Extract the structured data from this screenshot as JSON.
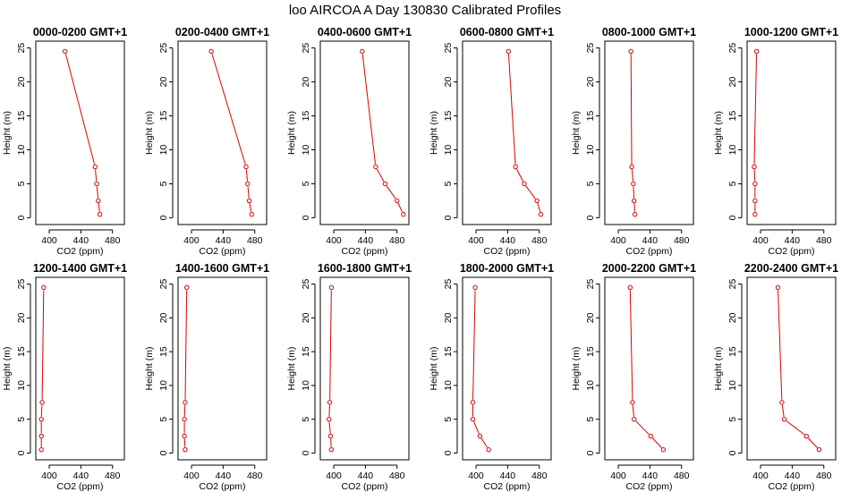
{
  "figure": {
    "title": "loo AIRCOA A  Day 130830  Calibrated Profiles"
  },
  "colors": {
    "series": "#dd0000",
    "axis": "#000000",
    "background": "#ffffff"
  },
  "chart_data": [
    {
      "type": "line",
      "title": "0000-0200 GMT+1",
      "xlabel": "CO2 (ppm)",
      "ylabel": "Height (m)",
      "xlim": [
        383,
        495
      ],
      "ylim": [
        0,
        25
      ],
      "xticks": [
        400,
        440,
        480
      ],
      "yticks": [
        0,
        5,
        10,
        15,
        20,
        25
      ],
      "x": [
        464,
        462,
        460,
        458,
        420
      ],
      "y": [
        0.5,
        2.5,
        5,
        7.5,
        24.5
      ]
    },
    {
      "type": "line",
      "title": "0200-0400 GMT+1",
      "xlabel": "CO2 (ppm)",
      "ylabel": "Height (m)",
      "xlim": [
        383,
        495
      ],
      "ylim": [
        0,
        25
      ],
      "xticks": [
        400,
        440,
        480
      ],
      "yticks": [
        0,
        5,
        10,
        15,
        20,
        25
      ],
      "x": [
        476,
        473,
        471,
        469,
        425
      ],
      "y": [
        0.5,
        2.5,
        5,
        7.5,
        24.5
      ]
    },
    {
      "type": "line",
      "title": "0400-0600 GMT+1",
      "xlabel": "CO2 (ppm)",
      "ylabel": "Height (m)",
      "xlim": [
        383,
        495
      ],
      "ylim": [
        0,
        25
      ],
      "xticks": [
        400,
        440,
        480
      ],
      "yticks": [
        0,
        5,
        10,
        15,
        20,
        25
      ],
      "x": [
        488,
        480,
        465,
        453,
        436
      ],
      "y": [
        0.5,
        2.5,
        5,
        7.5,
        24.5
      ]
    },
    {
      "type": "line",
      "title": "0600-0800 GMT+1",
      "xlabel": "CO2 (ppm)",
      "ylabel": "Height (m)",
      "xlim": [
        383,
        495
      ],
      "ylim": [
        0,
        25
      ],
      "xticks": [
        400,
        440,
        480
      ],
      "yticks": [
        0,
        5,
        10,
        15,
        20,
        25
      ],
      "x": [
        482,
        477,
        461,
        450,
        441
      ],
      "y": [
        0.5,
        2.5,
        5,
        7.5,
        24.5
      ]
    },
    {
      "type": "line",
      "title": "0800-1000 GMT+1",
      "xlabel": "CO2 (ppm)",
      "ylabel": "Height (m)",
      "xlim": [
        383,
        495
      ],
      "ylim": [
        0,
        25
      ],
      "xticks": [
        400,
        440,
        480
      ],
      "yticks": [
        0,
        5,
        10,
        15,
        20,
        25
      ],
      "x": [
        421,
        420,
        419,
        417,
        416
      ],
      "y": [
        0.5,
        2.5,
        5,
        7.5,
        24.5
      ]
    },
    {
      "type": "line",
      "title": "1000-1200 GMT+1",
      "xlabel": "CO2 (ppm)",
      "ylabel": "Height (m)",
      "xlim": [
        383,
        495
      ],
      "ylim": [
        0,
        25
      ],
      "xticks": [
        400,
        440,
        480
      ],
      "yticks": [
        0,
        5,
        10,
        15,
        20,
        25
      ],
      "x": [
        393,
        393,
        393,
        392,
        395
      ],
      "y": [
        0.5,
        2.5,
        5,
        7.5,
        24.5
      ]
    },
    {
      "type": "line",
      "title": "1200-1400 GMT+1",
      "xlabel": "CO2 (ppm)",
      "ylabel": "Height (m)",
      "xlim": [
        383,
        495
      ],
      "ylim": [
        0,
        25
      ],
      "xticks": [
        400,
        440,
        480
      ],
      "yticks": [
        0,
        5,
        10,
        15,
        20,
        25
      ],
      "x": [
        390,
        390,
        390,
        391,
        393
      ],
      "y": [
        0.5,
        2.5,
        5,
        7.5,
        24.5
      ]
    },
    {
      "type": "line",
      "title": "1400-1600 GMT+1",
      "xlabel": "CO2 (ppm)",
      "ylabel": "Height (m)",
      "xlim": [
        383,
        495
      ],
      "ylim": [
        0,
        25
      ],
      "xticks": [
        400,
        440,
        480
      ],
      "yticks": [
        0,
        5,
        10,
        15,
        20,
        25
      ],
      "x": [
        392,
        391,
        391,
        392,
        394
      ],
      "y": [
        0.5,
        2.5,
        5,
        7.5,
        24.5
      ]
    },
    {
      "type": "line",
      "title": "1600-1800 GMT+1",
      "xlabel": "CO2 (ppm)",
      "ylabel": "Height (m)",
      "xlim": [
        383,
        495
      ],
      "ylim": [
        0,
        25
      ],
      "xticks": [
        400,
        440,
        480
      ],
      "yticks": [
        0,
        5,
        10,
        15,
        20,
        25
      ],
      "x": [
        397,
        396,
        394,
        395,
        397
      ],
      "y": [
        0.5,
        2.5,
        5,
        7.5,
        24.5
      ]
    },
    {
      "type": "line",
      "title": "1800-2000 GMT+1",
      "xlabel": "CO2 (ppm)",
      "ylabel": "Height (m)",
      "xlim": [
        383,
        495
      ],
      "ylim": [
        0,
        25
      ],
      "xticks": [
        400,
        440,
        480
      ],
      "yticks": [
        0,
        5,
        10,
        15,
        20,
        25
      ],
      "x": [
        416,
        405,
        396,
        396,
        399
      ],
      "y": [
        0.5,
        2.5,
        5,
        7.5,
        24.5
      ]
    },
    {
      "type": "line",
      "title": "2000-2200 GMT+1",
      "xlabel": "CO2 (ppm)",
      "ylabel": "Height (m)",
      "xlim": [
        383,
        495
      ],
      "ylim": [
        0,
        25
      ],
      "xticks": [
        400,
        440,
        480
      ],
      "yticks": [
        0,
        5,
        10,
        15,
        20,
        25
      ],
      "x": [
        457,
        441,
        420,
        418,
        415
      ],
      "y": [
        0.5,
        2.5,
        5,
        7.5,
        24.5
      ]
    },
    {
      "type": "line",
      "title": "2200-2400 GMT+1",
      "xlabel": "CO2 (ppm)",
      "ylabel": "Height (m)",
      "xlim": [
        383,
        495
      ],
      "ylim": [
        0,
        25
      ],
      "xticks": [
        400,
        440,
        480
      ],
      "yticks": [
        0,
        5,
        10,
        15,
        20,
        25
      ],
      "x": [
        474,
        458,
        430,
        427,
        422
      ],
      "y": [
        0.5,
        2.5,
        5,
        7.5,
        24.5
      ]
    }
  ]
}
